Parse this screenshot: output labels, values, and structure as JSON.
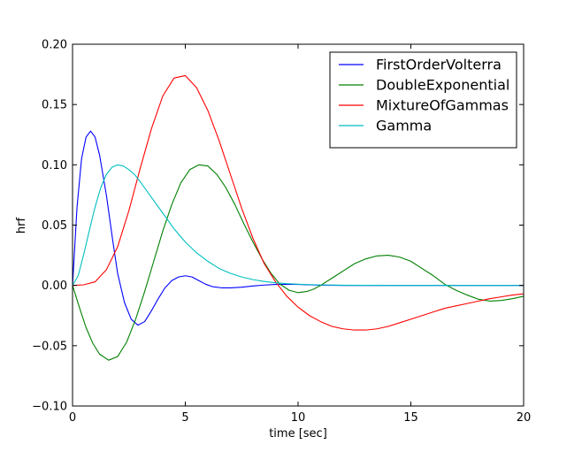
{
  "chart_data": {
    "type": "line",
    "title": "",
    "xlabel": "time [sec]",
    "ylabel": "hrf",
    "xlim": [
      0,
      20
    ],
    "ylim": [
      -0.1,
      0.2
    ],
    "xticks": [
      0,
      5,
      10,
      15,
      20
    ],
    "xtick_labels": [
      "0",
      "5",
      "10",
      "15",
      "20"
    ],
    "yticks": [
      -0.1,
      -0.05,
      0.0,
      0.05,
      0.1,
      0.15,
      0.2
    ],
    "ytick_labels": [
      "−0.10",
      "−0.05",
      "0.00",
      "0.05",
      "0.10",
      "0.15",
      "0.20"
    ],
    "grid": false,
    "legend_position": "top-right",
    "series": [
      {
        "name": "FirstOrderVolterra",
        "color": "#0000ff",
        "x": [
          0,
          0.2,
          0.4,
          0.6,
          0.8,
          1.0,
          1.2,
          1.5,
          1.8,
          2.0,
          2.3,
          2.6,
          2.9,
          3.2,
          3.5,
          3.8,
          4.1,
          4.4,
          4.7,
          5.0,
          5.3,
          5.6,
          5.9,
          6.2,
          6.6,
          7.0,
          7.5,
          8.0,
          8.5,
          9.0,
          9.5,
          10.0,
          10.5,
          11.0,
          12.0,
          13.0,
          14.0,
          15.0,
          16.0,
          17.0,
          18.0,
          19.0,
          20.0
        ],
        "y": [
          0.0,
          0.065,
          0.105,
          0.123,
          0.128,
          0.123,
          0.108,
          0.075,
          0.035,
          0.01,
          -0.014,
          -0.028,
          -0.033,
          -0.03,
          -0.021,
          -0.011,
          -0.002,
          0.004,
          0.007,
          0.008,
          0.007,
          0.004,
          0.001,
          -0.001,
          -0.002,
          -0.002,
          -0.0015,
          -0.0005,
          0.0003,
          0.0008,
          0.001,
          0.0008,
          0.0005,
          0.0002,
          0.0,
          0.0,
          0.0,
          0.0,
          0.0,
          0.0,
          0.0,
          0.0,
          0.0
        ]
      },
      {
        "name": "DoubleExponential",
        "color": "#008000",
        "x": [
          0,
          0.3,
          0.6,
          0.9,
          1.2,
          1.6,
          2.0,
          2.4,
          2.8,
          3.2,
          3.6,
          4.0,
          4.4,
          4.8,
          5.2,
          5.6,
          6.0,
          6.4,
          6.8,
          7.2,
          7.6,
          8.0,
          8.4,
          8.8,
          9.2,
          9.6,
          10.0,
          10.4,
          10.7,
          11.0,
          11.5,
          12.0,
          12.5,
          13.0,
          13.5,
          14.0,
          14.5,
          15.0,
          15.5,
          16.0,
          16.5,
          17.0,
          17.5,
          18.0,
          18.5,
          19.0,
          19.5,
          20.0
        ],
        "y": [
          0.0,
          -0.018,
          -0.035,
          -0.048,
          -0.057,
          -0.062,
          -0.059,
          -0.047,
          -0.028,
          -0.005,
          0.02,
          0.045,
          0.067,
          0.085,
          0.096,
          0.1,
          0.099,
          0.092,
          0.081,
          0.067,
          0.051,
          0.036,
          0.022,
          0.01,
          0.001,
          -0.004,
          -0.006,
          -0.005,
          -0.003,
          0.0,
          0.006,
          0.012,
          0.018,
          0.022,
          0.0245,
          0.025,
          0.0235,
          0.02,
          0.014,
          0.008,
          0.001,
          -0.004,
          -0.008,
          -0.0115,
          -0.013,
          -0.0125,
          -0.011,
          -0.009
        ]
      },
      {
        "name": "MixtureOfGammas",
        "color": "#ff0000",
        "x": [
          0,
          0.5,
          1.0,
          1.5,
          2.0,
          2.5,
          3.0,
          3.5,
          4.0,
          4.5,
          5.0,
          5.5,
          6.0,
          6.5,
          7.0,
          7.5,
          8.0,
          8.5,
          9.0,
          9.5,
          10.0,
          10.5,
          11.0,
          11.5,
          12.0,
          12.5,
          13.0,
          13.5,
          14.0,
          14.5,
          15.0,
          15.5,
          16.0,
          16.5,
          17.0,
          17.5,
          18.0,
          18.5,
          19.0,
          19.5,
          20.0
        ],
        "y": [
          0.0,
          0.0005,
          0.003,
          0.013,
          0.032,
          0.062,
          0.097,
          0.13,
          0.157,
          0.172,
          0.174,
          0.164,
          0.145,
          0.12,
          0.092,
          0.064,
          0.039,
          0.018,
          0.003,
          -0.009,
          -0.018,
          -0.025,
          -0.03,
          -0.034,
          -0.036,
          -0.037,
          -0.037,
          -0.036,
          -0.034,
          -0.031,
          -0.028,
          -0.025,
          -0.022,
          -0.019,
          -0.017,
          -0.015,
          -0.013,
          -0.011,
          -0.0095,
          -0.008,
          -0.007
        ]
      },
      {
        "name": "Gamma",
        "color": "#00bfbf",
        "x": [
          0,
          0.25,
          0.5,
          0.75,
          1.0,
          1.25,
          1.5,
          1.75,
          2.0,
          2.25,
          2.5,
          2.75,
          3.0,
          3.5,
          4.0,
          4.5,
          5.0,
          5.5,
          6.0,
          6.5,
          7.0,
          7.5,
          8.0,
          8.5,
          9.0,
          9.5,
          10.0,
          11.0,
          12.0,
          13.0,
          14.0,
          16.0,
          18.0,
          20.0
        ],
        "y": [
          0.0,
          0.008,
          0.026,
          0.046,
          0.065,
          0.081,
          0.092,
          0.098,
          0.1,
          0.099,
          0.096,
          0.092,
          0.086,
          0.073,
          0.06,
          0.047,
          0.036,
          0.027,
          0.02,
          0.014,
          0.01,
          0.007,
          0.0048,
          0.0033,
          0.0022,
          0.0015,
          0.001,
          0.0004,
          0.0002,
          0.0001,
          0.0,
          0.0,
          0.0,
          0.0
        ]
      }
    ]
  }
}
